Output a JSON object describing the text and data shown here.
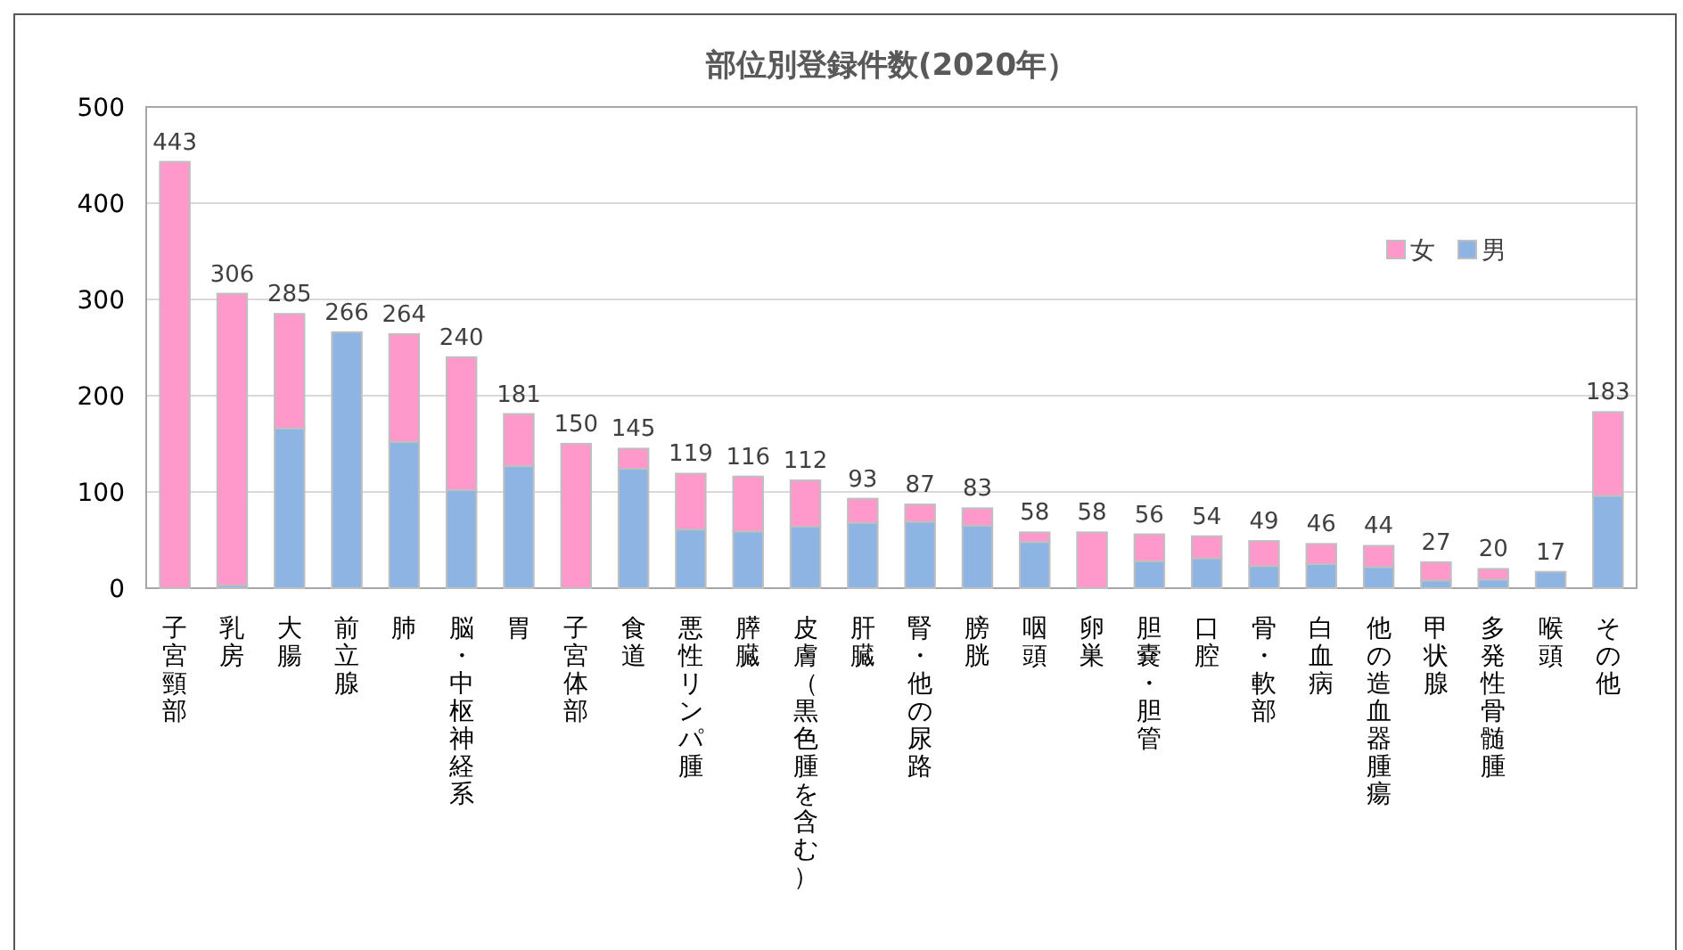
{
  "chart_data": {
    "type": "bar",
    "title": "部位別登録件数(2020年）",
    "stacked": true,
    "categories": [
      "子宮頸部",
      "乳房",
      "大腸",
      "前立腺",
      "肺",
      "脳・中枢神経系",
      "胃",
      "子宮体部",
      "食道",
      "悪性リンパ腫",
      "膵臓",
      "皮膚（黒色腫を含む）",
      "肝臓",
      "腎・他の尿路",
      "膀胱",
      "咽頭",
      "卵巣",
      "胆嚢・胆管",
      "口腔",
      "骨・軟部",
      "白血病",
      "他の造血器腫瘍",
      "甲状腺",
      "多発性骨髄腫",
      "喉頭",
      "その他"
    ],
    "series": [
      {
        "name": "男",
        "color": "#8eb4e3",
        "values": [
          0,
          3,
          166,
          266,
          152,
          102,
          127,
          0,
          124,
          61,
          59,
          64,
          68,
          69,
          65,
          48,
          0,
          28,
          31,
          23,
          25,
          22,
          8,
          9,
          17,
          96
        ]
      },
      {
        "name": "女",
        "color": "#ff99cc",
        "values": [
          443,
          303,
          119,
          0,
          112,
          138,
          54,
          150,
          21,
          58,
          57,
          48,
          25,
          18,
          18,
          10,
          58,
          28,
          23,
          26,
          21,
          22,
          19,
          11,
          0,
          87
        ]
      }
    ],
    "totals": [
      "443",
      "306",
      "285",
      "266",
      "264",
      "240",
      "181",
      "150",
      "145",
      "119",
      "116",
      "112",
      "93",
      "87",
      "83",
      "58",
      "58",
      "56",
      "54",
      "49",
      "46",
      "44",
      "27",
      "20",
      "17",
      "183"
    ],
    "ylim": [
      0,
      500
    ],
    "yticks": [
      0,
      100,
      200,
      300,
      400,
      500
    ],
    "grid": "y",
    "legend": "top right"
  }
}
